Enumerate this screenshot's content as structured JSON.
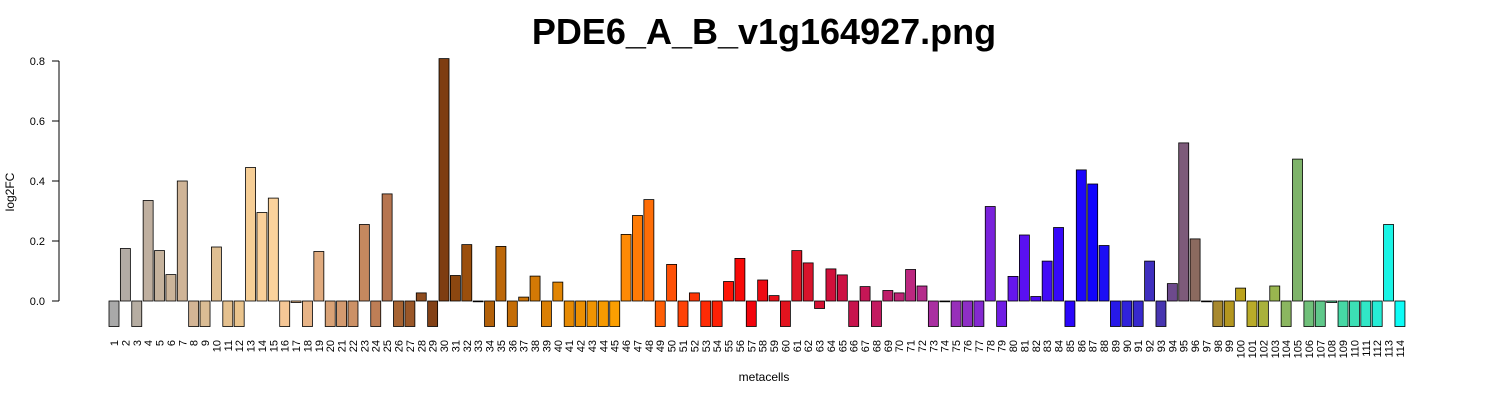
{
  "chart_data": {
    "type": "bar",
    "title": "PDE6_A_B_v1g164927.png",
    "xlabel": "metacells",
    "ylabel": "log2FC",
    "ylim": [
      -0.087,
      0.81
    ],
    "yticks": [
      0.0,
      0.2,
      0.4,
      0.6,
      0.8
    ],
    "ytick_labels": [
      "0.0",
      "0.2",
      "0.4",
      "0.6",
      "0.8"
    ],
    "grid": false,
    "categories": [
      "1",
      "2",
      "3",
      "4",
      "5",
      "6",
      "7",
      "8",
      "9",
      "10",
      "11",
      "12",
      "13",
      "14",
      "15",
      "16",
      "17",
      "18",
      "19",
      "20",
      "21",
      "22",
      "23",
      "24",
      "25",
      "26",
      "27",
      "28",
      "29",
      "30",
      "31",
      "32",
      "33",
      "34",
      "35",
      "36",
      "37",
      "38",
      "39",
      "40",
      "41",
      "42",
      "43",
      "44",
      "45",
      "46",
      "47",
      "48",
      "49",
      "50",
      "51",
      "52",
      "53",
      "54",
      "55",
      "56",
      "57",
      "58",
      "59",
      "60",
      "61",
      "62",
      "63",
      "64",
      "65",
      "66",
      "67",
      "68",
      "69",
      "70",
      "71",
      "72",
      "73",
      "74",
      "75",
      "76",
      "77",
      "78",
      "79",
      "80",
      "81",
      "82",
      "83",
      "84",
      "85",
      "86",
      "87",
      "88",
      "89",
      "90",
      "91",
      "92",
      "93",
      "94",
      "95",
      "96",
      "97",
      "98",
      "99",
      "100",
      "101",
      "102",
      "103",
      "104",
      "105",
      "106",
      "107",
      "108",
      "109",
      "110",
      "111",
      "112",
      "113",
      "114"
    ],
    "values": [
      -0.085,
      0.175,
      -0.085,
      0.335,
      0.168,
      0.088,
      0.4,
      -0.085,
      -0.085,
      0.18,
      -0.085,
      -0.085,
      0.445,
      0.295,
      0.343,
      -0.085,
      -0.005,
      -0.085,
      0.165,
      -0.085,
      -0.085,
      -0.085,
      0.255,
      -0.085,
      0.357,
      -0.085,
      -0.085,
      0.027,
      -0.085,
      0.808,
      0.085,
      0.188,
      -0.002,
      -0.085,
      0.182,
      -0.085,
      0.013,
      0.083,
      -0.085,
      0.063,
      -0.085,
      -0.085,
      -0.085,
      -0.085,
      -0.085,
      0.222,
      0.285,
      0.338,
      -0.085,
      0.122,
      -0.085,
      0.027,
      -0.085,
      -0.085,
      0.065,
      0.142,
      -0.085,
      0.07,
      0.018,
      -0.085,
      0.168,
      0.127,
      -0.025,
      0.107,
      0.087,
      -0.085,
      0.048,
      -0.085,
      0.035,
      0.027,
      0.105,
      0.05,
      -0.085,
      -0.002,
      -0.085,
      -0.085,
      -0.085,
      0.315,
      -0.085,
      0.082,
      0.22,
      0.015,
      0.133,
      0.245,
      -0.085,
      0.437,
      0.39,
      0.185,
      -0.085,
      -0.085,
      -0.085,
      0.133,
      -0.085,
      0.058,
      0.527,
      0.207,
      -0.002,
      -0.085,
      -0.085,
      0.043,
      -0.085,
      -0.085,
      0.05,
      -0.085,
      0.473,
      -0.085,
      -0.085,
      -0.005,
      -0.085,
      -0.085,
      -0.085,
      -0.085,
      0.255,
      -0.085
    ],
    "colors": [
      "#a9a9a9",
      "#b3aba4",
      "#b6ada2",
      "#bfaf9f",
      "#c5b29c",
      "#ccb59a",
      "#cfb497",
      "#d4b595",
      "#dabc94",
      "#dfbf92",
      "#e5c18f",
      "#eac48d",
      "#f6ce96",
      "#fad09a",
      "#fbd29c",
      "#f5c796",
      "#eebd8d",
      "#e7b487",
      "#e0ab7f",
      "#d9a276",
      "#d39a6f",
      "#cc9166",
      "#c5885f",
      "#be7e56",
      "#b67550",
      "#a76433",
      "#9a5728",
      "#8e4c1f",
      "#834116",
      "#7e3d11",
      "#8c4710",
      "#9b4f0d",
      "#a8590b",
      "#b36109",
      "#bc6708",
      "#c46d07",
      "#cc7306",
      "#d37905",
      "#da7f04",
      "#e18503",
      "#e68a03",
      "#eb8f02",
      "#f09402",
      "#f69a01",
      "#fb9f01",
      "#fe8a05",
      "#fe7b06",
      "#fe6d06",
      "#fe5e06",
      "#fe5006",
      "#fe4206",
      "#fe3605",
      "#fe2b05",
      "#fe2005",
      "#fe1506",
      "#f80a08",
      "#f2040c",
      "#ed0a12",
      "#e80f18",
      "#e3131e",
      "#df1625",
      "#d8142c",
      "#d51233",
      "#d0103b",
      "#cc1244",
      "#c8134d",
      "#c51656",
      "#c31a60",
      "#c01e6a",
      "#bf2374",
      "#bc2780",
      "#b52c8c",
      "#a92fa1",
      "#a12ead",
      "#972fba",
      "#8e2ec5",
      "#8429d0",
      "#7a22db",
      "#701ce4",
      "#6516ed",
      "#5a10f1",
      "#4f0cf4",
      "#420af7",
      "#3608f9",
      "#2a06fb",
      "#1d05fc",
      "#1004fd",
      "#1c0ef4",
      "#2719e8",
      "#3022db",
      "#3729cd",
      "#3f2fbf",
      "#4735b0",
      "#6d4a8d",
      "#7d5a7a",
      "#8b6a5f",
      "#9c7b45",
      "#a8892f",
      "#b3961f",
      "#bba21c",
      "#b9ab29",
      "#a9b13c",
      "#99b64f",
      "#8bb660",
      "#7eb36a",
      "#70c07a",
      "#5fc88a",
      "#52d196",
      "#46d8a5",
      "#3cdfb5",
      "#31e6c6",
      "#26edd6",
      "#1af5e6",
      "#0efcf6"
    ]
  }
}
